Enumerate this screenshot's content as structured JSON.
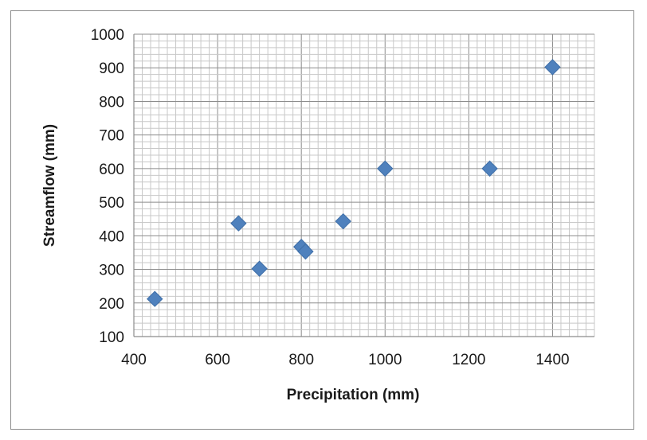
{
  "chart_data": {
    "type": "scatter",
    "title": "",
    "xlabel": "Precipitation (mm)",
    "ylabel": "Streamflow (mm)",
    "xlim": [
      400,
      1500
    ],
    "ylim": [
      100,
      1000
    ],
    "x_major_step": 200,
    "x_minor_step": 20,
    "y_major_step": 100,
    "y_minor_step": 20,
    "x_tick_labels": [
      "400",
      "600",
      "800",
      "1000",
      "1200",
      "1400"
    ],
    "y_tick_labels": [
      "100",
      "200",
      "300",
      "400",
      "500",
      "600",
      "700",
      "800",
      "900",
      "1000"
    ],
    "grid": true,
    "legend": "none",
    "marker": "diamond",
    "series": [
      {
        "color": "#4f81bd",
        "points": [
          {
            "x": 450,
            "y": 212
          },
          {
            "x": 650,
            "y": 437
          },
          {
            "x": 700,
            "y": 302
          },
          {
            "x": 800,
            "y": 367
          },
          {
            "x": 810,
            "y": 353
          },
          {
            "x": 900,
            "y": 443
          },
          {
            "x": 1000,
            "y": 600
          },
          {
            "x": 1250,
            "y": 600
          },
          {
            "x": 1400,
            "y": 902
          }
        ]
      }
    ]
  }
}
